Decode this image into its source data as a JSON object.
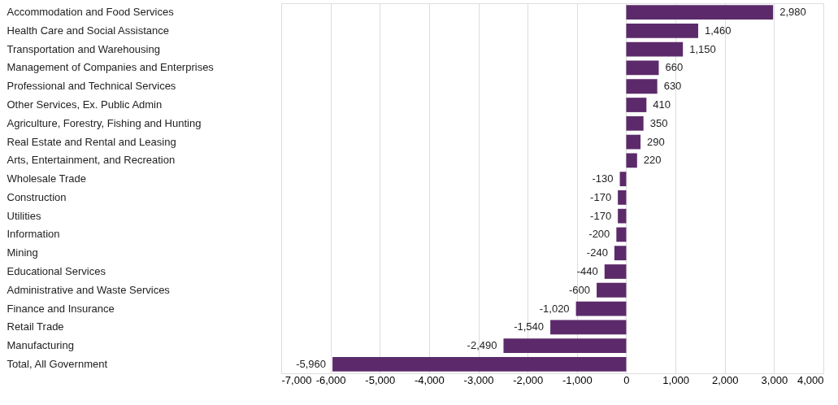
{
  "chart_data": {
    "type": "bar",
    "orientation": "horizontal",
    "categories": [
      "Accommodation and Food Services",
      "Health Care and Social Assistance",
      "Transportation and Warehousing",
      "Management of Companies and Enterprises",
      "Professional and Technical Services",
      "Other Services, Ex. Public Admin",
      "Agriculture, Forestry, Fishing and Hunting",
      "Real Estate and Rental and Leasing",
      "Arts, Entertainment, and Recreation",
      "Wholesale Trade",
      "Construction",
      "Utilities",
      "Information",
      "Mining",
      "Educational Services",
      "Administrative and Waste Services",
      "Finance and Insurance",
      "Retail Trade",
      "Manufacturing",
      "Total, All Government"
    ],
    "values": [
      2980,
      1460,
      1150,
      660,
      630,
      410,
      350,
      290,
      220,
      -130,
      -170,
      -170,
      -200,
      -240,
      -440,
      -600,
      -1020,
      -1540,
      -2490,
      -5960
    ],
    "value_labels": [
      "2,980",
      "1,460",
      "1,150",
      "660",
      "630",
      "410",
      "350",
      "290",
      "220",
      "-130",
      "-170",
      "-170",
      "-200",
      "-240",
      "-440",
      "-600",
      "-1,020",
      "-1,540",
      "-2,490",
      "-5,960"
    ],
    "color": "#5c2a6a",
    "xlim": [
      -7000,
      4000
    ],
    "xticks": [
      {
        "value": -7000,
        "label": "-7,000"
      },
      {
        "value": -6000,
        "label": "-6,000"
      },
      {
        "value": -5000,
        "label": "-5,000"
      },
      {
        "value": -4000,
        "label": "-4,000"
      },
      {
        "value": -3000,
        "label": "-3,000"
      },
      {
        "value": -2000,
        "label": "-2,000"
      },
      {
        "value": -1000,
        "label": "-1,000"
      },
      0,
      {
        "value": 1000,
        "label": "1,000"
      },
      {
        "value": 2000,
        "label": "2,000"
      },
      {
        "value": 3000,
        "label": "3,000"
      },
      {
        "value": 4000,
        "label": "4,000"
      }
    ],
    "grid": "x"
  }
}
